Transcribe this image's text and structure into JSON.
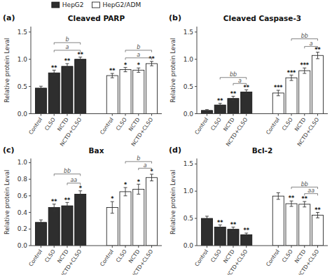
{
  "chart_data": [
    {
      "type": "bar",
      "label": "(a)",
      "title": "Cleaved PARP",
      "ylabel": "Relative protein Leval",
      "categories": [
        "Control",
        "CLSO",
        "NCTD",
        "NCTD+CLSO"
      ],
      "series": [
        {
          "name": "HepG2",
          "color": "#2e2e2e",
          "values": [
            0.47,
            0.75,
            0.87,
            1.0
          ],
          "errors": [
            0.035,
            0.05,
            0.05,
            0.04
          ]
        },
        {
          "name": "HepG2/ADM",
          "color": "#ffffff",
          "values": [
            0.7,
            0.81,
            0.8,
            0.92
          ],
          "errors": [
            0.04,
            0.04,
            0.04,
            0.04
          ]
        }
      ],
      "ylim": [
        0,
        1.6
      ],
      "yticks": [
        {
          "value": 0.0,
          "label": "0.0"
        },
        0.5,
        {
          "value": 1.0,
          "label": "1.0"
        },
        1.5
      ],
      "grid": false,
      "legend": "top",
      "stars": [
        {
          "series": 0,
          "index": 1,
          "label": "**"
        },
        {
          "series": 0,
          "index": 2,
          "label": "**"
        },
        {
          "series": 0,
          "index": 3,
          "label": "**"
        },
        {
          "series": 1,
          "index": 0,
          "label": "**"
        },
        {
          "series": 1,
          "index": 1,
          "label": "*"
        },
        {
          "series": 1,
          "index": 2,
          "label": "*"
        },
        {
          "series": 1,
          "index": 3,
          "label": "**"
        }
      ],
      "brackets": [
        {
          "series": 0,
          "x1": 1,
          "x2": 3,
          "y": 1.13,
          "label": "a"
        },
        {
          "series": 0,
          "x1": 1,
          "x2": 3,
          "y": 1.27,
          "label": "b"
        },
        {
          "series": 1,
          "x1": 1,
          "x2": 3,
          "y": 0.99,
          "label": "a"
        },
        {
          "series": 1,
          "x1": 1,
          "x2": 3,
          "y": 1.13,
          "label": "b"
        }
      ]
    },
    {
      "type": "bar",
      "label": "(b)",
      "title": "Cleaved Caspase-3",
      "ylabel": "Relative protein Leval",
      "categories": [
        "Control",
        "CLSO",
        "NCTD",
        "NCTD+CLSO"
      ],
      "series": [
        {
          "name": "HepG2",
          "color": "#2e2e2e",
          "values": [
            0.06,
            0.16,
            0.28,
            0.4
          ],
          "errors": [
            0.015,
            0.03,
            0.04,
            0.04
          ]
        },
        {
          "name": "HepG2/ADM",
          "color": "#ffffff",
          "values": [
            0.38,
            0.66,
            0.79,
            1.07
          ],
          "errors": [
            0.05,
            0.05,
            0.05,
            0.06
          ]
        }
      ],
      "ylim": [
        0,
        1.6
      ],
      "yticks": [
        {
          "value": 0.0,
          "label": "0.0"
        },
        0.5,
        {
          "value": 1.0,
          "label": "1.0"
        },
        1.5
      ],
      "grid": false,
      "stars": [
        {
          "series": 0,
          "index": 1,
          "label": "**"
        },
        {
          "series": 0,
          "index": 2,
          "label": "**"
        },
        {
          "series": 0,
          "index": 3,
          "label": "**"
        },
        {
          "series": 1,
          "index": 0,
          "label": "***"
        },
        {
          "series": 1,
          "index": 1,
          "label": "***"
        },
        {
          "series": 1,
          "index": 2,
          "label": "***"
        },
        {
          "series": 1,
          "index": 3,
          "label": "**"
        }
      ],
      "brackets": [
        {
          "series": 0,
          "x1": 2,
          "x2": 3,
          "y": 0.52,
          "label": "a"
        },
        {
          "series": 0,
          "x1": 1,
          "x2": 3,
          "y": 0.63,
          "label": "bb"
        },
        {
          "series": 1,
          "x1": 2,
          "x2": 3,
          "y": 1.2,
          "label": "a"
        },
        {
          "series": 1,
          "x1": 1,
          "x2": 3,
          "y": 1.34,
          "label": "bb"
        }
      ]
    },
    {
      "type": "bar",
      "label": "(c)",
      "title": "Bax",
      "ylabel": "Relative protein Leval",
      "categories": [
        "Control",
        "CLSO",
        "NCTD",
        "NCTD+CLSO"
      ],
      "series": [
        {
          "name": "HepG2",
          "color": "#2e2e2e",
          "values": [
            0.28,
            0.46,
            0.48,
            0.62
          ],
          "errors": [
            0.03,
            0.04,
            0.04,
            0.04
          ]
        },
        {
          "name": "HepG2/ADM",
          "color": "#ffffff",
          "values": [
            0.46,
            0.65,
            0.68,
            0.82
          ],
          "errors": [
            0.07,
            0.05,
            0.06,
            0.04
          ]
        }
      ],
      "ylim": [
        0,
        1.05
      ],
      "yticks": [
        {
          "value": 0.0,
          "label": "0.0"
        },
        0.2,
        0.4,
        0.6,
        0.8,
        {
          "value": 1.0,
          "label": "1.0"
        }
      ],
      "grid": false,
      "stars": [
        {
          "series": 0,
          "index": 1,
          "label": "**"
        },
        {
          "series": 0,
          "index": 2,
          "label": "**"
        },
        {
          "series": 0,
          "index": 3,
          "label": "*"
        },
        {
          "series": 1,
          "index": 0,
          "label": "*"
        },
        {
          "series": 1,
          "index": 1,
          "label": "*"
        },
        {
          "series": 1,
          "index": 2,
          "label": "*"
        },
        {
          "series": 1,
          "index": 3,
          "label": "*"
        }
      ],
      "brackets": [
        {
          "series": 0,
          "x1": 2,
          "x2": 3,
          "y": 0.73,
          "label": "aa"
        },
        {
          "series": 0,
          "x1": 1,
          "x2": 3,
          "y": 0.84,
          "label": "bb"
        },
        {
          "series": 1,
          "x1": 2,
          "x2": 3,
          "y": 0.91,
          "label": "a"
        },
        {
          "series": 1,
          "x1": 1,
          "x2": 3,
          "y": 0.99,
          "label": "b"
        }
      ]
    },
    {
      "type": "bar",
      "label": "(d)",
      "title": "Bcl-2",
      "ylabel": "Relative protein Leval",
      "categories": [
        "Control",
        "CLSO",
        "NCTD",
        "NCTD+CLSO"
      ],
      "series": [
        {
          "name": "HepG2",
          "color": "#2e2e2e",
          "values": [
            0.5,
            0.34,
            0.3,
            0.2
          ],
          "errors": [
            0.04,
            0.04,
            0.04,
            0.03
          ]
        },
        {
          "name": "HepG2/ADM",
          "color": "#ffffff",
          "values": [
            0.91,
            0.77,
            0.76,
            0.56
          ],
          "errors": [
            0.06,
            0.05,
            0.05,
            0.05
          ]
        }
      ],
      "ylim": [
        0,
        1.6
      ],
      "yticks": [
        {
          "value": 0.0,
          "label": "0.0"
        },
        0.5,
        {
          "value": 1.0,
          "label": "1.0"
        },
        1.5
      ],
      "grid": false,
      "stars": [
        {
          "series": 0,
          "index": 1,
          "label": "**"
        },
        {
          "series": 0,
          "index": 2,
          "label": "**"
        },
        {
          "series": 0,
          "index": 3,
          "label": "**"
        },
        {
          "series": 1,
          "index": 1,
          "label": "**"
        },
        {
          "series": 1,
          "index": 2,
          "label": "**"
        },
        {
          "series": 1,
          "index": 3,
          "label": "**"
        }
      ],
      "brackets": [
        {
          "series": 1,
          "x1": 2,
          "x2": 3,
          "y": 0.92,
          "label": "aa"
        },
        {
          "series": 1,
          "x1": 1,
          "x2": 3,
          "y": 1.04,
          "label": "bb"
        }
      ]
    }
  ]
}
